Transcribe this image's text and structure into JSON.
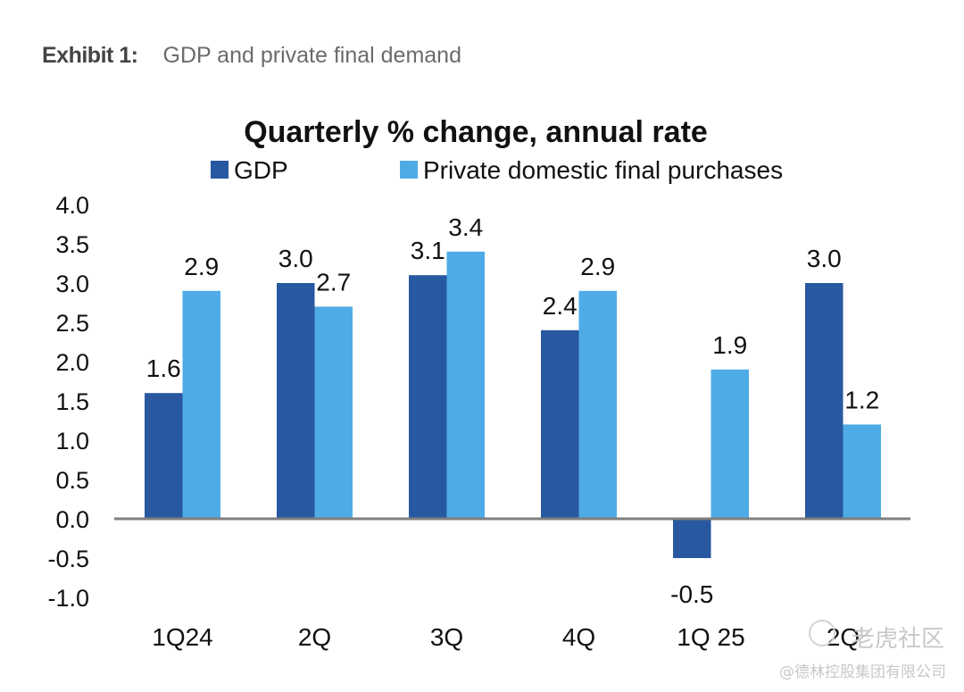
{
  "exhibit": {
    "label": "Exhibit 1:",
    "caption": "GDP and private final demand"
  },
  "watermark": {
    "top": "老虎社区",
    "bottom": "@德林控股集团有限公司"
  },
  "colors": {
    "gdp": "#2858a0",
    "private": "#4fabe6",
    "axis": "#7f7f7f",
    "text": "#111111"
  },
  "chart_data": {
    "type": "bar",
    "title": "Quarterly % change, annual rate",
    "xlabel": "",
    "ylabel": "",
    "categories": [
      "1Q24",
      "2Q",
      "3Q",
      "4Q",
      "1Q 25",
      "2Q"
    ],
    "series": [
      {
        "name": "GDP",
        "values": [
          1.6,
          3.0,
          3.1,
          2.4,
          -0.5,
          3.0
        ]
      },
      {
        "name": "Private domestic final purchases",
        "values": [
          2.9,
          2.7,
          3.4,
          2.9,
          1.9,
          1.2
        ]
      }
    ],
    "data_labels": {
      "GDP": [
        "1.6",
        "3.0",
        "3.1",
        "2.4",
        "-0.5",
        "3.0"
      ],
      "Private domestic final purchases": [
        "2.9",
        "2.7",
        "3.4",
        "2.9",
        "1.9",
        "1.2"
      ]
    },
    "ylim": [
      -1.0,
      4.0
    ],
    "yticks": [
      4.0,
      3.5,
      3.0,
      2.5,
      2.0,
      1.5,
      1.0,
      0.5,
      0.0,
      -0.5,
      -1.0
    ],
    "ytick_labels": [
      "4.0",
      "3.5",
      "3.0",
      "2.5",
      "2.0",
      "1.5",
      "1.0",
      "0.5",
      "0.0",
      "-0.5",
      "-1.0"
    ],
    "grid": false,
    "legend_position": "top",
    "zero_line": true
  }
}
